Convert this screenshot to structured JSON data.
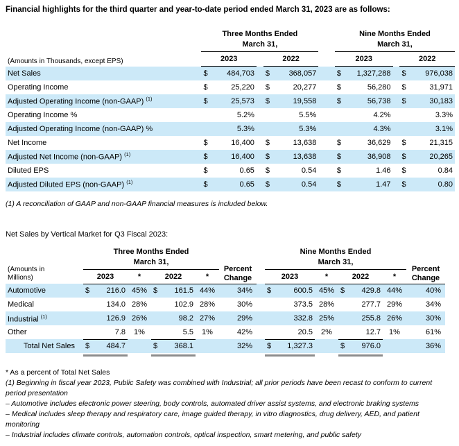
{
  "page": {
    "title": "Financial highlights for the third quarter and year-to-date period ended March 31, 2023 are as follows:",
    "section2_title": "Net Sales by Vertical Market for Q3 Fiscal 2023:"
  },
  "colors": {
    "row_shade": "#cce9f8",
    "rule": "#000000",
    "total_underline_bar": "#8c8c8c"
  },
  "table1": {
    "amounts_label": "(Amounts in Thousands, except EPS)",
    "groups": [
      {
        "line1": "Three Months Ended",
        "line2": "March 31,"
      },
      {
        "line1": "Nine Months Ended",
        "line2": "March 31,"
      }
    ],
    "years": [
      "2023",
      "2022",
      "2023",
      "2022"
    ],
    "rows": [
      {
        "label": "Net Sales",
        "sup": "",
        "shaded": true,
        "values": [
          "$",
          "484,703",
          "$",
          "368,057",
          "$",
          "1,327,288",
          "$",
          "976,038"
        ]
      },
      {
        "label": "Operating Income",
        "sup": "",
        "shaded": false,
        "values": [
          "$",
          "25,220",
          "$",
          "20,277",
          "$",
          "56,280",
          "$",
          "31,971"
        ]
      },
      {
        "label": "Adjusted Operating Income (non-GAAP)",
        "sup": "(1)",
        "shaded": true,
        "values": [
          "$",
          "25,573",
          "$",
          "19,558",
          "$",
          "56,738",
          "$",
          "30,183"
        ]
      },
      {
        "label": "Operating Income %",
        "sup": "",
        "shaded": false,
        "values": [
          "",
          "5.2%",
          "",
          "5.5%",
          "",
          "4.2%",
          "",
          "3.3%"
        ]
      },
      {
        "label": "Adjusted Operating Income (non-GAAP) %",
        "sup": "",
        "shaded": true,
        "values": [
          "",
          "5.3%",
          "",
          "5.3%",
          "",
          "4.3%",
          "",
          "3.1%"
        ]
      },
      {
        "label": "Net Income",
        "sup": "",
        "shaded": false,
        "values": [
          "$",
          "16,400",
          "$",
          "13,638",
          "$",
          "36,629",
          "$",
          "21,315"
        ]
      },
      {
        "label": "Adjusted Net Income (non-GAAP)",
        "sup": "(1)",
        "shaded": true,
        "values": [
          "$",
          "16,400",
          "$",
          "13,638",
          "$",
          "36,908",
          "$",
          "20,265"
        ]
      },
      {
        "label": "Diluted EPS",
        "sup": "",
        "shaded": false,
        "values": [
          "$",
          "0.65",
          "$",
          "0.54",
          "$",
          "1.46",
          "$",
          "0.84"
        ]
      },
      {
        "label": "Adjusted Diluted EPS (non-GAAP)",
        "sup": "(1)",
        "shaded": true,
        "values": [
          "$",
          "0.65",
          "$",
          "0.54",
          "$",
          "1.47",
          "$",
          "0.80"
        ]
      }
    ],
    "footnote": "(1) A reconciliation of GAAP and non-GAAP financial measures is included below."
  },
  "table2": {
    "amounts_label": {
      "line1": "(Amounts in",
      "line2": "Millions)"
    },
    "groups": [
      {
        "line1": "Three Months Ended",
        "line2": "March 31,"
      },
      {
        "line1": "Nine Months Ended",
        "line2": "March 31,"
      }
    ],
    "percent_change_header": {
      "line1": "Percent",
      "line2": "Change"
    },
    "years": [
      "2023",
      "*",
      "2022",
      "*"
    ],
    "rows": [
      {
        "label": "Automotive",
        "sup": "",
        "shaded": true,
        "total": false,
        "values": [
          "$",
          "216.0",
          "45%",
          "$",
          "161.5",
          "44%",
          "34%",
          "$",
          "600.5",
          "45%",
          "$",
          "429.8",
          "44%",
          "40%"
        ]
      },
      {
        "label": "Medical",
        "sup": "",
        "shaded": false,
        "total": false,
        "values": [
          "",
          "134.0",
          "28%",
          "",
          "102.9",
          "28%",
          "30%",
          "",
          "373.5",
          "28%",
          "",
          "277.7",
          "29%",
          "34%"
        ]
      },
      {
        "label": "Industrial",
        "sup": "(1)",
        "shaded": true,
        "total": false,
        "values": [
          "",
          "126.9",
          "26%",
          "",
          "98.2",
          "27%",
          "29%",
          "",
          "332.8",
          "25%",
          "",
          "255.8",
          "26%",
          "30%"
        ]
      },
      {
        "label": "Other",
        "sup": "",
        "shaded": false,
        "total": false,
        "values": [
          "",
          "7.8",
          "1%",
          "",
          "5.5",
          "1%",
          "42%",
          "",
          "20.5",
          "2%",
          "",
          "12.7",
          "1%",
          "61%"
        ]
      },
      {
        "label": "Total Net Sales",
        "sup": "",
        "shaded": true,
        "total": true,
        "values": [
          "$",
          "484.7",
          "",
          "$",
          "368.1",
          "",
          "32%",
          "$",
          "1,327.3",
          "",
          "$",
          "976.0",
          "",
          "36%"
        ]
      }
    ]
  },
  "footnotes": [
    {
      "text": "* As a percent of Total Net Sales",
      "italic": false
    },
    {
      "text": "(1) Beginning in fiscal year 2023, Public Safety was combined with Industrial; all prior periods have been recast to conform to current period presentation",
      "italic": true
    },
    {
      "text": "– Automotive includes electronic power steering, body controls, automated driver assist systems, and electronic braking systems",
      "italic": true
    },
    {
      "text": "– Medical includes sleep therapy and respiratory care, image guided therapy, in vitro diagnostics, drug delivery, AED, and patient monitoring",
      "italic": true
    },
    {
      "text": "– Industrial includes climate controls, automation controls, optical inspection, smart metering, and public safety",
      "italic": true
    }
  ]
}
